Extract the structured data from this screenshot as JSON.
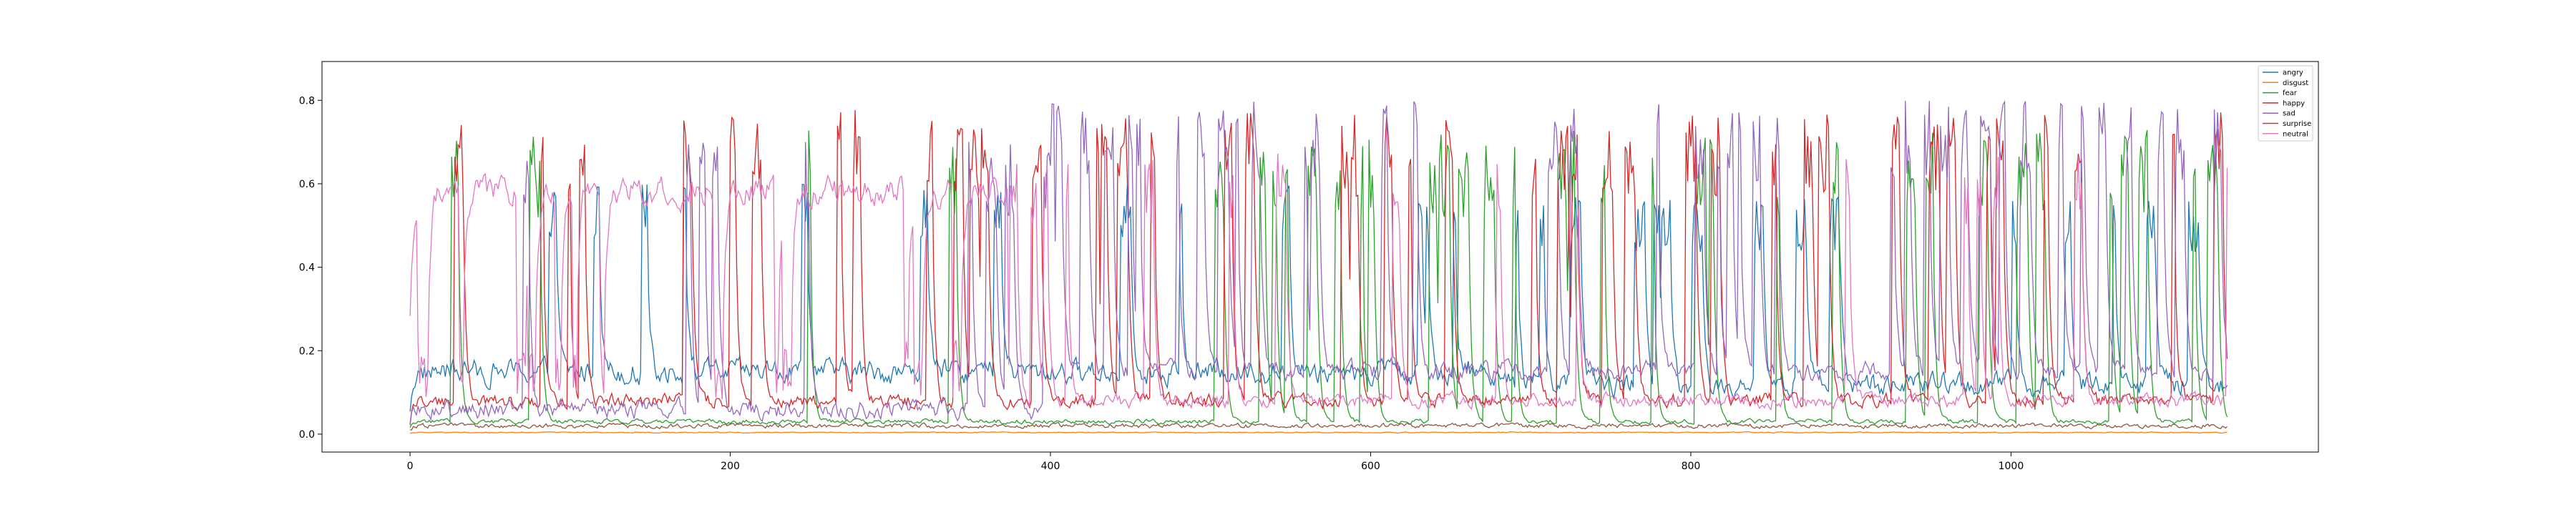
{
  "chart_data": {
    "type": "line",
    "title": "",
    "xlabel": "",
    "ylabel": "",
    "xlim": [
      -55,
      1192
    ],
    "ylim": [
      -0.043,
      0.893
    ],
    "x_ticks": [
      0,
      200,
      400,
      600,
      800,
      1000
    ],
    "y_ticks": [
      0.0,
      0.2,
      0.4,
      0.6,
      0.8
    ],
    "grid": false,
    "legend_position": "top-right",
    "n_points": 1136,
    "series": [
      {
        "name": "angry",
        "color": "#1f77b4",
        "level": "low-to-mid",
        "typical": 0.12,
        "approx_max": 0.63
      },
      {
        "name": "disgust",
        "color": "#ff7f0e",
        "level": "near-zero",
        "typical": 0.004,
        "approx_max": 0.01
      },
      {
        "name": "fear",
        "color": "#2ca02c",
        "level": "low, spikes in later half",
        "typical": 0.03,
        "approx_max": 0.84
      },
      {
        "name": "happy",
        "color": "#d62728",
        "level": "low with frequent spikes",
        "typical": 0.08,
        "approx_max": 0.84
      },
      {
        "name": "sad",
        "color": "#9467bd",
        "level": "low early, high spikes later",
        "typical": 0.06,
        "approx_max": 0.85
      },
      {
        "name": "surprise",
        "color": "#8c564b",
        "level": "near-zero",
        "typical": 0.02,
        "approx_max": 0.05
      },
      {
        "name": "neutral",
        "color": "#e377c2",
        "level": "high early (~0.6), then spiky",
        "typical": 0.55,
        "approx_max": 0.75
      }
    ]
  }
}
